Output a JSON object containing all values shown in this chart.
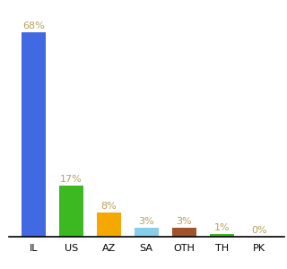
{
  "categories": [
    "IL",
    "US",
    "AZ",
    "SA",
    "OTH",
    "TH",
    "PK"
  ],
  "values": [
    68,
    17,
    8,
    3,
    3,
    1,
    0
  ],
  "bar_colors": [
    "#4169e1",
    "#3cb820",
    "#f5a800",
    "#87ceeb",
    "#a0522d",
    "#3cb820",
    "#4169e1"
  ],
  "label_color": "#b8a060",
  "background_color": "#ffffff",
  "ylim": [
    0,
    76
  ],
  "bar_width": 0.65,
  "label_fontsize": 8,
  "tick_fontsize": 8
}
